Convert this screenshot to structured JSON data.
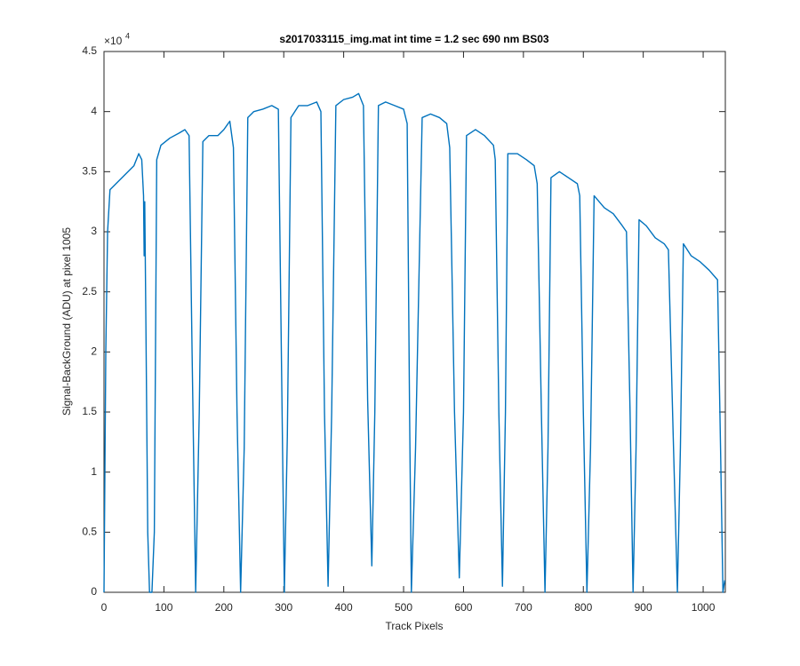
{
  "chart_data": {
    "type": "line",
    "title": "s2017033115_img.mat int time = 1.2 sec  690 nm BS03",
    "x_label": "Track Pixels",
    "y_label": "Signal-BackGround (ADU) at pixel 1005",
    "y_multiplier": {
      "base": "×10",
      "exponent": "4"
    },
    "color": "#0072bd",
    "xlim": [
      0,
      1037
    ],
    "ylim": [
      0,
      4.5
    ],
    "xticks": [
      0,
      100,
      200,
      300,
      400,
      500,
      600,
      700,
      800,
      900,
      1000
    ],
    "yticks": [
      0,
      0.5,
      1,
      1.5,
      2,
      2.5,
      3,
      3.5,
      4,
      4.5
    ],
    "x": [
      0,
      3,
      6,
      10,
      20,
      30,
      40,
      50,
      58,
      63,
      66,
      67,
      68,
      70,
      73,
      76,
      80,
      84,
      88,
      95,
      110,
      125,
      135,
      142,
      147,
      153,
      159,
      165,
      175,
      190,
      200,
      210,
      216,
      222,
      228,
      234,
      240,
      250,
      265,
      280,
      291,
      296,
      301,
      306,
      312,
      325,
      340,
      355,
      362,
      368,
      374,
      380,
      387,
      400,
      415,
      425,
      433,
      440,
      447,
      452,
      458,
      470,
      485,
      500,
      506,
      510,
      513,
      520,
      531,
      545,
      560,
      572,
      577,
      585,
      593,
      600,
      605,
      620,
      635,
      650,
      653,
      659,
      665,
      670,
      674,
      690,
      705,
      718,
      723,
      730,
      736,
      741,
      746,
      760,
      775,
      790,
      794,
      800,
      806,
      812,
      818,
      835,
      850,
      865,
      872,
      878,
      883,
      888,
      893,
      905,
      920,
      935,
      942,
      950,
      957,
      962,
      967,
      980,
      995,
      1010,
      1024,
      1029,
      1033,
      1036
    ],
    "values": [
      0,
      2.0,
      3.0,
      3.35,
      3.4,
      3.45,
      3.5,
      3.55,
      3.65,
      3.6,
      3.3,
      2.8,
      3.25,
      2.2,
      0.5,
      0,
      0,
      0.5,
      3.6,
      3.72,
      3.78,
      3.82,
      3.85,
      3.8,
      2.0,
      0,
      1.5,
      3.75,
      3.8,
      3.8,
      3.85,
      3.92,
      3.7,
      1.5,
      0,
      1.2,
      3.95,
      4.0,
      4.02,
      4.05,
      4.02,
      2.0,
      0,
      1.3,
      3.95,
      4.05,
      4.05,
      4.08,
      4.0,
      1.5,
      0.05,
      1.5,
      4.05,
      4.1,
      4.12,
      4.15,
      4.05,
      1.6,
      0.22,
      1.5,
      4.05,
      4.08,
      4.05,
      4.02,
      3.9,
      1.5,
      0,
      1.2,
      3.95,
      3.98,
      3.95,
      3.9,
      3.7,
      1.5,
      0.12,
      1.5,
      3.8,
      3.85,
      3.8,
      3.72,
      3.6,
      1.5,
      0.05,
      1.5,
      3.65,
      3.65,
      3.6,
      3.55,
      3.4,
      1.5,
      0,
      1.2,
      3.45,
      3.5,
      3.45,
      3.4,
      3.3,
      1.5,
      0,
      1.2,
      3.3,
      3.2,
      3.15,
      3.05,
      3.0,
      1.5,
      0,
      1.2,
      3.1,
      3.05,
      2.95,
      2.9,
      2.85,
      1.3,
      0,
      1.2,
      2.9,
      2.8,
      2.75,
      2.68,
      2.6,
      1.2,
      0,
      0.1
    ]
  }
}
